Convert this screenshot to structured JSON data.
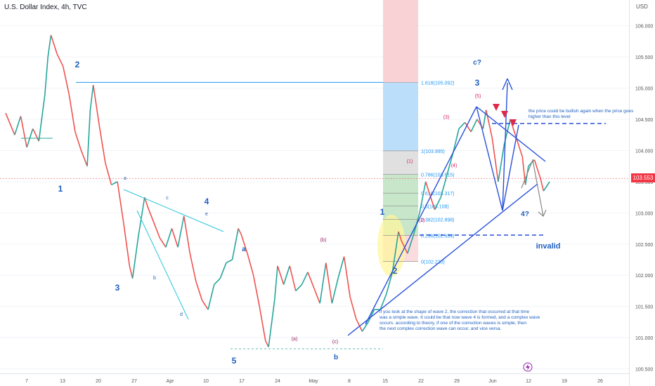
{
  "header": {
    "title": "U.S. Dollar Index, 4h, TVC",
    "currency": "USD"
  },
  "price_tag": "103.553",
  "colors": {
    "up": "#26a69a",
    "down": "#ef5350",
    "wave": "#1f5fbf",
    "fib": "#2196f3",
    "trend": "#2850d8",
    "sub": "#8e1b5a",
    "label_red": "#d81b60"
  },
  "annotations": {
    "note_bullish": "the price could be bullish again when the price goes higher than this level",
    "invalid": "invalid",
    "wave_question": "4?",
    "c_question": "c?",
    "note_bottom": "if you look at the shape of wave 2, the correction that occurred at that time was a simple wave. It could be that now wave 4 is formed, and a complex wave occurs. according to theory, if one of the correction waves is simple, then the next complex correction wave can occur, and vice versa."
  },
  "chart_data": {
    "type": "line",
    "title": "U.S. Dollar Index, 4h, TVC",
    "y_range": [
      100.45,
      106.3
    ],
    "y_ticks": [
      "106.000",
      "105.500",
      "105.000",
      "104.500",
      "104.000",
      "103.500",
      "103.000",
      "102.500",
      "102.000",
      "101.500",
      "101.000",
      "100.500"
    ],
    "x_ticks": [
      "7",
      "13",
      "20",
      "27",
      "Apr",
      "10",
      "17",
      "24",
      "May",
      "8",
      "15",
      "22",
      "29",
      "Jun",
      "12",
      "19",
      "26"
    ],
    "series": [
      {
        "points": [
          [
            0,
            104.6
          ],
          [
            3,
            104.25
          ],
          [
            5,
            104.55
          ],
          [
            7,
            104.05
          ],
          [
            9,
            104.35
          ],
          [
            11,
            104.15
          ],
          [
            13,
            104.9
          ],
          [
            14,
            105.5
          ],
          [
            15,
            105.85
          ],
          [
            17,
            105.55
          ],
          [
            19,
            105.35
          ],
          [
            21,
            104.9
          ],
          [
            23,
            104.3
          ],
          [
            25,
            104.0
          ],
          [
            27,
            103.75
          ],
          [
            28,
            104.65
          ],
          [
            29,
            105.05
          ],
          [
            31,
            104.4
          ],
          [
            33,
            103.8
          ],
          [
            35,
            103.45
          ],
          [
            37,
            103.5
          ],
          [
            39,
            102.85
          ],
          [
            41,
            102.15
          ],
          [
            42,
            101.95
          ],
          [
            44,
            102.65
          ],
          [
            46,
            103.25
          ],
          [
            47,
            103.1
          ],
          [
            49,
            102.85
          ],
          [
            51,
            102.6
          ],
          [
            53,
            102.45
          ],
          [
            55,
            102.75
          ],
          [
            57,
            102.45
          ],
          [
            59,
            102.95
          ],
          [
            61,
            102.35
          ],
          [
            63,
            101.9
          ],
          [
            65,
            101.6
          ],
          [
            67,
            101.45
          ],
          [
            69,
            101.85
          ],
          [
            71,
            101.95
          ],
          [
            73,
            102.2
          ],
          [
            75,
            102.25
          ],
          [
            77,
            102.75
          ],
          [
            78,
            102.65
          ],
          [
            80,
            102.35
          ],
          [
            82,
            102.0
          ],
          [
            84,
            101.5
          ],
          [
            86,
            100.95
          ],
          [
            87,
            100.85
          ],
          [
            89,
            101.6
          ],
          [
            90,
            102.15
          ],
          [
            92,
            101.85
          ],
          [
            94,
            102.15
          ],
          [
            96,
            101.75
          ],
          [
            98,
            101.85
          ],
          [
            100,
            102.05
          ],
          [
            102,
            101.8
          ],
          [
            104,
            101.55
          ],
          [
            106,
            102.2
          ],
          [
            108,
            101.55
          ],
          [
            110,
            101.95
          ],
          [
            112,
            102.3
          ],
          [
            114,
            101.65
          ],
          [
            116,
            101.3
          ],
          [
            118,
            101.1
          ],
          [
            120,
            101.25
          ],
          [
            122,
            101.45
          ],
          [
            124,
            101.45
          ],
          [
            126,
            101.7
          ],
          [
            128,
            102.05
          ],
          [
            130,
            102.7
          ],
          [
            131,
            102.55
          ],
          [
            133,
            102.35
          ],
          [
            135,
            102.65
          ],
          [
            137,
            103.0
          ],
          [
            139,
            103.5
          ],
          [
            140,
            103.35
          ],
          [
            142,
            103.05
          ],
          [
            144,
            103.25
          ],
          [
            146,
            103.6
          ],
          [
            148,
            103.95
          ],
          [
            150,
            104.35
          ],
          [
            152,
            104.45
          ],
          [
            154,
            104.3
          ],
          [
            156,
            104.5
          ],
          [
            158,
            104.35
          ],
          [
            159,
            104.65
          ],
          [
            161,
            104.2
          ],
          [
            163,
            103.5
          ],
          [
            165,
            104.1
          ],
          [
            167,
            104.5
          ],
          [
            169,
            104.2
          ],
          [
            171,
            103.9
          ],
          [
            172,
            103.45
          ],
          [
            173,
            103.75
          ],
          [
            175,
            103.85
          ],
          [
            177,
            103.55
          ],
          [
            178,
            103.35
          ],
          [
            180,
            103.5
          ]
        ]
      }
    ],
    "fib_levels": [
      {
        "label": "1.618(105.092)",
        "value": 105.092
      },
      {
        "label": "1(103.995)",
        "value": 103.995
      },
      {
        "label": "0.786(103.615)",
        "value": 103.615
      },
      {
        "label": "0.618(103.317)",
        "value": 103.317
      },
      {
        "label": "0.5(103.108)",
        "value": 103.108
      },
      {
        "label": "0.382(102.898)",
        "value": 102.898
      },
      {
        "label": "0.236(102.639)",
        "value": 102.639
      },
      {
        "label": "0(102.220)",
        "value": 102.22
      }
    ],
    "wave_labels_major": [
      "2",
      "1",
      "3",
      "4",
      "5",
      "1",
      "2",
      "3"
    ],
    "wave_labels_minor": [
      "a",
      "b",
      "c",
      "d",
      "e",
      "a",
      "b"
    ],
    "wave_labels_sub": [
      "(a)",
      "(b)",
      "(c)",
      "(1)",
      "(2)",
      "(3)",
      "(4)",
      "(5)"
    ]
  }
}
